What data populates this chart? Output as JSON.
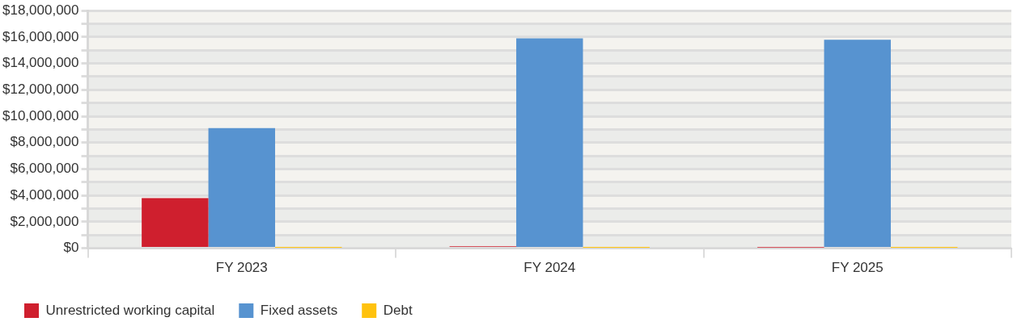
{
  "chart_data": {
    "type": "bar",
    "categories": [
      "FY 2023",
      "FY 2024",
      "FY 2025"
    ],
    "series": [
      {
        "name": "Unrestricted working capital",
        "color": "#cf1f2e",
        "values": [
          3800000,
          150000,
          50000
        ]
      },
      {
        "name": "Fixed assets",
        "color": "#5793d0",
        "values": [
          9100000,
          15900000,
          15800000
        ]
      },
      {
        "name": "Debt",
        "color": "#ffc20e",
        "values": [
          40000,
          40000,
          40000
        ]
      }
    ],
    "ylim": [
      0,
      18000000
    ],
    "yticks": [
      {
        "value": 0,
        "label": "$0"
      },
      {
        "value": 1000000,
        "label": null
      },
      {
        "value": 2000000,
        "label": "$2,000,000"
      },
      {
        "value": 3000000,
        "label": null
      },
      {
        "value": 4000000,
        "label": "$4,000,000"
      },
      {
        "value": 5000000,
        "label": null
      },
      {
        "value": 6000000,
        "label": "$6,000,000"
      },
      {
        "value": 7000000,
        "label": null
      },
      {
        "value": 8000000,
        "label": "$8,000,000"
      },
      {
        "value": 9000000,
        "label": null
      },
      {
        "value": 10000000,
        "label": "$10,000,000"
      },
      {
        "value": 11000000,
        "label": null
      },
      {
        "value": 12000000,
        "label": "$12,000,000"
      },
      {
        "value": 13000000,
        "label": null
      },
      {
        "value": 14000000,
        "label": "$14,000,000"
      },
      {
        "value": 15000000,
        "label": null
      },
      {
        "value": 16000000,
        "label": "$16,000,000"
      },
      {
        "value": 17000000,
        "label": null
      },
      {
        "value": 18000000,
        "label": "$18,000,000"
      }
    ],
    "grid": "y",
    "legend": "bottom"
  }
}
